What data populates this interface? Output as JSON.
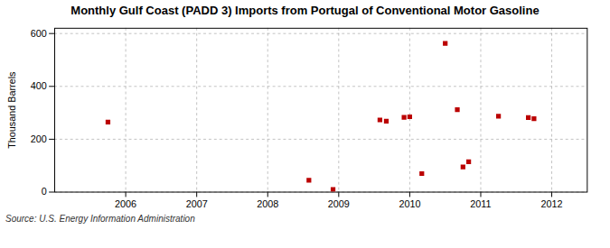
{
  "chart_data": {
    "type": "scatter",
    "title": "Monthly Gulf Coast (PADD 3) Imports from Portugal of Conventional Motor Gasoline",
    "ylabel": "Thousand Barrels",
    "caption": "Source: U.S. Energy Information Administration",
    "x": [
      2005.75,
      2008.58,
      2008.92,
      2009.58,
      2009.67,
      2009.92,
      2010.0,
      2010.17,
      2010.5,
      2010.67,
      2010.75,
      2010.83,
      2011.25,
      2011.67,
      2011.75
    ],
    "values": [
      265,
      45,
      10,
      273,
      268,
      283,
      285,
      70,
      563,
      312,
      95,
      115,
      287,
      282,
      278
    ],
    "color": "#bb0000",
    "marker": "square",
    "xlim": [
      2005.0,
      2012.5
    ],
    "xticks": [
      2006,
      2007,
      2008,
      2009,
      2010,
      2011,
      2012
    ],
    "ylim": [
      0,
      620
    ],
    "yticks": [
      0,
      200,
      400,
      600
    ],
    "grid": true
  }
}
